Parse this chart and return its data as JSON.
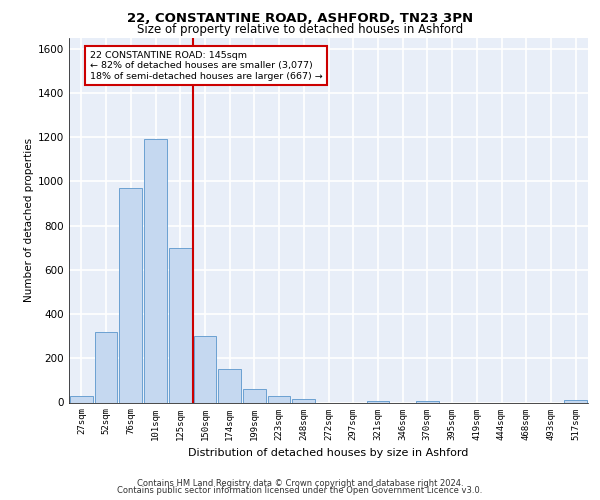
{
  "title_line1": "22, CONSTANTINE ROAD, ASHFORD, TN23 3PN",
  "title_line2": "Size of property relative to detached houses in Ashford",
  "xlabel": "Distribution of detached houses by size in Ashford",
  "ylabel": "Number of detached properties",
  "footer_line1": "Contains HM Land Registry data © Crown copyright and database right 2024.",
  "footer_line2": "Contains public sector information licensed under the Open Government Licence v3.0.",
  "categories": [
    "27sqm",
    "52sqm",
    "76sqm",
    "101sqm",
    "125sqm",
    "150sqm",
    "174sqm",
    "199sqm",
    "223sqm",
    "248sqm",
    "272sqm",
    "297sqm",
    "321sqm",
    "346sqm",
    "370sqm",
    "395sqm",
    "419sqm",
    "444sqm",
    "468sqm",
    "493sqm",
    "517sqm"
  ],
  "values": [
    30,
    320,
    970,
    1190,
    700,
    300,
    150,
    60,
    30,
    15,
    0,
    0,
    5,
    0,
    5,
    0,
    0,
    0,
    0,
    0,
    10
  ],
  "bar_color": "#c5d8f0",
  "bar_edge_color": "#5a96cc",
  "background_color": "#e8eef8",
  "grid_color": "#ffffff",
  "vline_color": "#cc0000",
  "annotation_line1": "22 CONSTANTINE ROAD: 145sqm",
  "annotation_line2": "← 82% of detached houses are smaller (3,077)",
  "annotation_line3": "18% of semi-detached houses are larger (667) →",
  "annotation_box_color": "#ffffff",
  "annotation_box_edge_color": "#cc0000",
  "ylim": [
    0,
    1650
  ],
  "yticks": [
    0,
    200,
    400,
    600,
    800,
    1000,
    1200,
    1400,
    1600
  ]
}
